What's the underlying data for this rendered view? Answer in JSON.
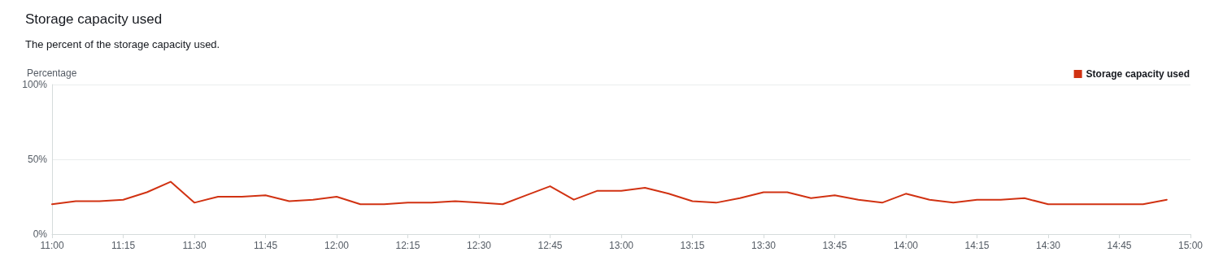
{
  "chart_data": {
    "type": "line",
    "title": "Storage capacity used",
    "subtitle": "The percent of the storage capacity used.",
    "ylabel": "Percentage",
    "x": [
      11,
      11.0833,
      11.1667,
      11.25,
      11.3333,
      11.4167,
      11.5,
      11.5833,
      11.6667,
      11.75,
      11.8333,
      11.9167,
      12,
      12.0833,
      12.1667,
      12.25,
      12.3333,
      12.4167,
      12.5,
      12.5833,
      12.6667,
      12.75,
      12.8333,
      12.9167,
      13,
      13.0833,
      13.1667,
      13.25,
      13.3333,
      13.4167,
      13.5,
      13.5833,
      13.6667,
      13.75,
      13.8333,
      13.9167,
      14,
      14.0833,
      14.1667,
      14.25,
      14.3333,
      14.4167,
      14.5,
      14.5833,
      14.6667,
      14.75,
      14.8333,
      14.9167
    ],
    "series": [
      {
        "name": "Storage capacity used",
        "color": "#d13212",
        "values": [
          20,
          22,
          22,
          23,
          28,
          35,
          21,
          25,
          25,
          26,
          22,
          23,
          25,
          20,
          20,
          21,
          21,
          22,
          21,
          20,
          26,
          32,
          23,
          29,
          29,
          31,
          27,
          22,
          21,
          24,
          28,
          28,
          24,
          26,
          23,
          21,
          27,
          23,
          21,
          23,
          23,
          24,
          20,
          20,
          20,
          20,
          20,
          23
        ]
      }
    ],
    "xlim": [
      11,
      15
    ],
    "xticks": [
      {
        "value": 11,
        "label": "11:00"
      },
      {
        "value": 11.25,
        "label": "11:15"
      },
      {
        "value": 11.5,
        "label": "11:30"
      },
      {
        "value": 11.75,
        "label": "11:45"
      },
      {
        "value": 12,
        "label": "12:00"
      },
      {
        "value": 12.25,
        "label": "12:15"
      },
      {
        "value": 12.5,
        "label": "12:30"
      },
      {
        "value": 12.75,
        "label": "12:45"
      },
      {
        "value": 13,
        "label": "13:00"
      },
      {
        "value": 13.25,
        "label": "13:15"
      },
      {
        "value": 13.5,
        "label": "13:30"
      },
      {
        "value": 13.75,
        "label": "13:45"
      },
      {
        "value": 14,
        "label": "14:00"
      },
      {
        "value": 14.25,
        "label": "14:15"
      },
      {
        "value": 14.5,
        "label": "14:30"
      },
      {
        "value": 14.75,
        "label": "14:45"
      },
      {
        "value": 15,
        "label": "15:00"
      }
    ],
    "ylim": [
      0,
      100
    ],
    "yticks": [
      {
        "value": 0,
        "label": "0%"
      },
      {
        "value": 50,
        "label": "50%"
      },
      {
        "value": 100,
        "label": "100%"
      }
    ],
    "grid": "y",
    "legend": "top right",
    "marker": "none",
    "line_style": "solid"
  }
}
